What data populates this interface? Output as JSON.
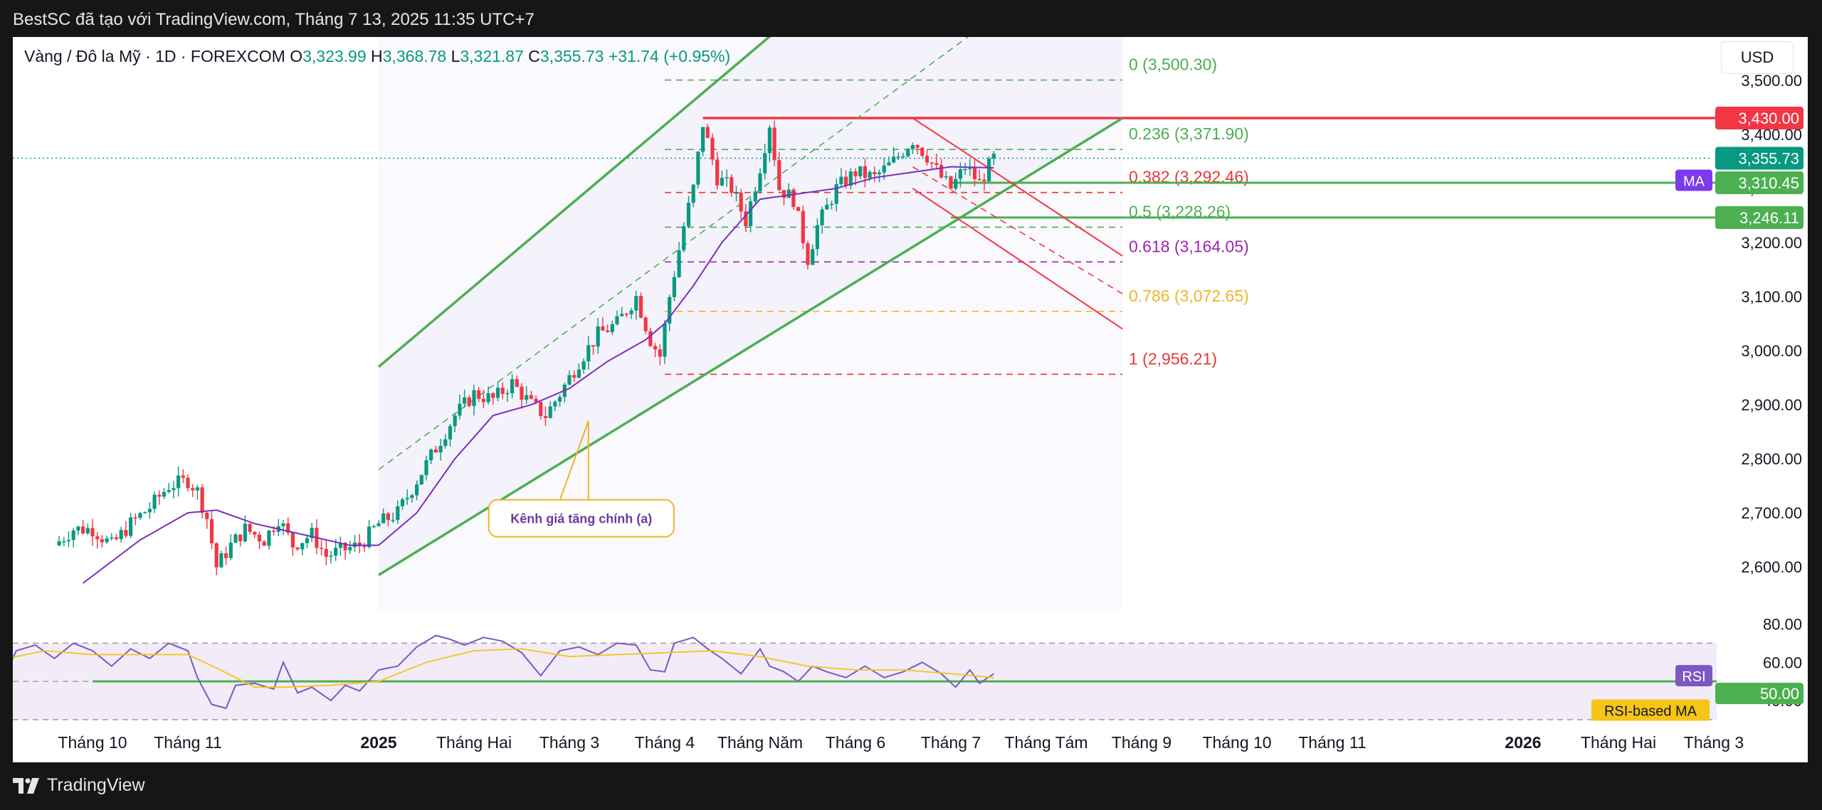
{
  "header": {
    "caption": "BestSC đã tạo với TradingView.com, Tháng 7 13, 2025 11:35 UTC+7"
  },
  "legend": {
    "symbol": "Vàng / Đô la Mỹ · 1D · FOREXCOM",
    "o_label": "O",
    "open": "3,323.99",
    "h_label": "H",
    "high": "3,368.78",
    "l_label": "L",
    "low": "3,321.87",
    "c_label": "C",
    "close": "3,355.73",
    "change": "+31.74 (+0.95%)"
  },
  "price_scale": {
    "currency": "USD"
  },
  "footer": {
    "brand": "TradingView"
  },
  "colors": {
    "up": "#089981",
    "down": "#f23645",
    "ma": "#7b2fbe",
    "channel": "#4caf50",
    "resistance": "#f23645",
    "rsi": "#7e57c2",
    "rsi_ma": "#f5c518",
    "annotation": "#f0b429"
  },
  "chart_data": [
    {
      "type": "candlestick",
      "title": "Vàng / Đô la Mỹ · 1D · FOREXCOM",
      "ylim": [
        2520,
        3580
      ],
      "y_ticks": [
        {
          "value": 2600,
          "label": "2,600.00"
        },
        {
          "value": 2700,
          "label": "2,700.00"
        },
        {
          "value": 2800,
          "label": "2,800.00"
        },
        {
          "value": 2900,
          "label": "2,900.00"
        },
        {
          "value": 3000,
          "label": "3,000.00"
        },
        {
          "value": 3100,
          "label": "3,100.00"
        },
        {
          "value": 3200,
          "label": "3,200.00"
        },
        {
          "value": 3300,
          "label": "3,300.00"
        },
        {
          "value": 3400,
          "label": "3,400.00"
        },
        {
          "value": 3500,
          "label": "3,500.00"
        }
      ],
      "x_ticks": [
        {
          "month": 0,
          "label": "Tháng 10",
          "bold": false
        },
        {
          "month": 1,
          "label": "Tháng 11",
          "bold": false
        },
        {
          "month": 3,
          "label": "2025",
          "bold": true
        },
        {
          "month": 4,
          "label": "Tháng Hai",
          "bold": false
        },
        {
          "month": 5,
          "label": "Tháng 3",
          "bold": false
        },
        {
          "month": 6,
          "label": "Tháng 4",
          "bold": false
        },
        {
          "month": 7,
          "label": "Tháng Năm",
          "bold": false
        },
        {
          "month": 8,
          "label": "Tháng 6",
          "bold": false
        },
        {
          "month": 9,
          "label": "Tháng 7",
          "bold": false
        },
        {
          "month": 10,
          "label": "Tháng Tám",
          "bold": false
        },
        {
          "month": 11,
          "label": "Tháng 9",
          "bold": false
        },
        {
          "month": 12,
          "label": "Tháng 10",
          "bold": false
        },
        {
          "month": 13,
          "label": "Tháng 11",
          "bold": false
        },
        {
          "month": 15,
          "label": "2026",
          "bold": true
        },
        {
          "month": 16,
          "label": "Tháng Hai",
          "bold": false
        },
        {
          "month": 17,
          "label": "Tháng 3",
          "bold": false
        }
      ],
      "close_path": [
        [
          -0.4,
          2640
        ],
        [
          -0.2,
          2670
        ],
        [
          0.0,
          2670
        ],
        [
          0.2,
          2640
        ],
        [
          0.4,
          2680
        ],
        [
          0.6,
          2710
        ],
        [
          0.8,
          2750
        ],
        [
          1.0,
          2760
        ],
        [
          1.1,
          2740
        ],
        [
          1.2,
          2690
        ],
        [
          1.3,
          2600
        ],
        [
          1.45,
          2640
        ],
        [
          1.6,
          2670
        ],
        [
          1.8,
          2650
        ],
        [
          1.95,
          2690
        ],
        [
          2.1,
          2640
        ],
        [
          2.3,
          2660
        ],
        [
          2.45,
          2620
        ],
        [
          2.6,
          2630
        ],
        [
          2.8,
          2640
        ],
        [
          3.0,
          2680
        ],
        [
          3.2,
          2700
        ],
        [
          3.4,
          2760
        ],
        [
          3.6,
          2820
        ],
        [
          3.8,
          2880
        ],
        [
          4.0,
          2920
        ],
        [
          4.2,
          2910
        ],
        [
          4.4,
          2940
        ],
        [
          4.6,
          2900
        ],
        [
          4.75,
          2880
        ],
        [
          4.9,
          2920
        ],
        [
          5.1,
          2980
        ],
        [
          5.3,
          3030
        ],
        [
          5.5,
          3050
        ],
        [
          5.7,
          3100
        ],
        [
          5.85,
          3020
        ],
        [
          5.95,
          2990
        ],
        [
          6.05,
          3100
        ],
        [
          6.2,
          3230
        ],
        [
          6.3,
          3300
        ],
        [
          6.4,
          3420
        ],
        [
          6.55,
          3320
        ],
        [
          6.7,
          3300
        ],
        [
          6.85,
          3240
        ],
        [
          7.0,
          3340
        ],
        [
          7.1,
          3420
        ],
        [
          7.2,
          3300
        ],
        [
          7.35,
          3280
        ],
        [
          7.5,
          3170
        ],
        [
          7.6,
          3230
        ],
        [
          7.8,
          3300
        ],
        [
          8.0,
          3330
        ],
        [
          8.2,
          3320
        ],
        [
          8.4,
          3350
        ],
        [
          8.6,
          3390
        ],
        [
          8.75,
          3360
        ],
        [
          8.9,
          3320
        ],
        [
          9.0,
          3300
        ],
        [
          9.15,
          3340
        ],
        [
          9.3,
          3310
        ],
        [
          9.45,
          3355.73
        ]
      ],
      "series": [
        {
          "name": "MA",
          "path": [
            [
              -0.1,
              2570
            ],
            [
              0.5,
              2650
            ],
            [
              1.0,
              2700
            ],
            [
              1.3,
              2705
            ],
            [
              1.7,
              2680
            ],
            [
              2.2,
              2660
            ],
            [
              2.7,
              2640
            ],
            [
              3.0,
              2640
            ],
            [
              3.4,
              2700
            ],
            [
              3.8,
              2800
            ],
            [
              4.2,
              2880
            ],
            [
              4.6,
              2900
            ],
            [
              5.0,
              2930
            ],
            [
              5.4,
              2980
            ],
            [
              5.8,
              3020
            ],
            [
              6.0,
              3050
            ],
            [
              6.3,
              3120
            ],
            [
              6.6,
              3200
            ],
            [
              7.0,
              3280
            ],
            [
              7.4,
              3290
            ],
            [
              7.8,
              3300
            ],
            [
              8.2,
              3320
            ],
            [
              8.6,
              3330
            ],
            [
              9.0,
              3340
            ],
            [
              9.45,
              3338
            ]
          ]
        }
      ],
      "lines": [
        {
          "name": "channel-upper",
          "kind": "solid",
          "from": [
            3.0,
            2970
          ],
          "to": [
            8.1,
            3730
          ]
        },
        {
          "name": "channel-mid",
          "kind": "dashed",
          "from": [
            3.0,
            2780
          ],
          "to": [
            10.8,
            3790
          ]
        },
        {
          "name": "channel-lower",
          "kind": "solid",
          "from": [
            3.0,
            2585
          ],
          "to": [
            10.8,
            3430
          ]
        },
        {
          "name": "downtrend-upper",
          "kind": "solid",
          "from": [
            8.6,
            3430
          ],
          "to": [
            10.8,
            3175
          ]
        },
        {
          "name": "downtrend-mid",
          "kind": "dashed",
          "from": [
            8.6,
            3340
          ],
          "to": [
            10.8,
            3105
          ]
        },
        {
          "name": "downtrend-lower",
          "kind": "solid",
          "from": [
            8.6,
            3300
          ],
          "to": [
            10.8,
            3040
          ]
        }
      ],
      "channel_band": {
        "x_from": 3.0,
        "x_to": 10.8
      },
      "fib_levels": [
        {
          "ratio": "0",
          "value": 3500.3,
          "label": "0 (3,500.30)",
          "color": "#4caf50"
        },
        {
          "ratio": "0.236",
          "value": 3371.9,
          "label": "0.236 (3,371.90)",
          "color": "#4caf50"
        },
        {
          "ratio": "0.382",
          "value": 3292.46,
          "label": "0.382 (3,292.46)",
          "color": "#e53935"
        },
        {
          "ratio": "0.5",
          "value": 3228.26,
          "label": "0.5 (3,228.26)",
          "color": "#4caf50"
        },
        {
          "ratio": "0.618",
          "value": 3164.05,
          "label": "0.618 (3,164.05)",
          "color": "#9c27b0"
        },
        {
          "ratio": "0.786",
          "value": 3072.65,
          "label": "0.786 (3,072.65)",
          "color": "#f0b429"
        },
        {
          "ratio": "1",
          "value": 2956.21,
          "label": "1 (2,956.21)",
          "color": "#e53935"
        }
      ],
      "fib_x": [
        6.0,
        10.8
      ],
      "resistance_line": {
        "value": 3430.0,
        "x_from": 6.4
      },
      "support_lines": [
        3310.45,
        3246.11
      ],
      "last_price": 3355.73,
      "price_badges": [
        {
          "value": 3430.0,
          "label": "3,430.00",
          "color": "#f23645"
        },
        {
          "value": 3355.73,
          "label": "3,355.73",
          "color": "#089981"
        },
        {
          "value": 3310.45,
          "label": "3,310.45",
          "color": "#4caf50"
        },
        {
          "value": 3246.11,
          "label": "3,246.11",
          "color": "#4caf50"
        }
      ],
      "ma_tag": {
        "label": "MA",
        "value": 3315
      },
      "annotation": {
        "text": "Kênh giá tăng chính (a)",
        "anchor": [
          5.2,
          2870
        ],
        "box_center": [
          5.2,
          2690
        ]
      }
    },
    {
      "type": "line",
      "title": "RSI",
      "ylim": [
        30,
        85
      ],
      "y_ticks": [
        {
          "value": 80,
          "label": "80.00"
        },
        {
          "value": 60,
          "label": "60.00"
        },
        {
          "value": 40,
          "label": "40.00"
        }
      ],
      "bands": {
        "upper": 70,
        "middle": 50,
        "lower": 30
      },
      "level_line": 50,
      "badges": [
        {
          "label": "RSI",
          "color": "#7e57c2"
        },
        {
          "label": "50.00",
          "value": 50,
          "color": "#4caf50"
        },
        {
          "label": "RSI-based MA",
          "color": "#f5c518"
        }
      ],
      "series": [
        {
          "name": "RSI",
          "path": [
            [
              -0.9,
              55
            ],
            [
              -0.8,
              66
            ],
            [
              -0.6,
              69
            ],
            [
              -0.4,
              62
            ],
            [
              -0.2,
              70
            ],
            [
              0.0,
              66
            ],
            [
              0.2,
              58
            ],
            [
              0.4,
              67
            ],
            [
              0.6,
              62
            ],
            [
              0.8,
              70
            ],
            [
              1.0,
              66
            ],
            [
              1.1,
              52
            ],
            [
              1.25,
              38
            ],
            [
              1.4,
              36
            ],
            [
              1.5,
              48
            ],
            [
              1.7,
              49
            ],
            [
              1.9,
              46
            ],
            [
              2.0,
              60
            ],
            [
              2.15,
              44
            ],
            [
              2.3,
              47
            ],
            [
              2.5,
              40
            ],
            [
              2.65,
              48
            ],
            [
              2.8,
              45
            ],
            [
              3.0,
              56
            ],
            [
              3.2,
              58
            ],
            [
              3.4,
              68
            ],
            [
              3.6,
              74
            ],
            [
              3.75,
              72
            ],
            [
              3.9,
              69
            ],
            [
              4.1,
              73
            ],
            [
              4.3,
              71
            ],
            [
              4.5,
              65
            ],
            [
              4.7,
              53
            ],
            [
              4.9,
              66
            ],
            [
              5.1,
              68
            ],
            [
              5.3,
              64
            ],
            [
              5.5,
              70
            ],
            [
              5.7,
              69
            ],
            [
              5.85,
              56
            ],
            [
              6.0,
              55
            ],
            [
              6.1,
              70
            ],
            [
              6.3,
              73
            ],
            [
              6.45,
              67
            ],
            [
              6.6,
              62
            ],
            [
              6.8,
              54
            ],
            [
              7.0,
              67
            ],
            [
              7.1,
              58
            ],
            [
              7.25,
              55
            ],
            [
              7.4,
              50
            ],
            [
              7.55,
              58
            ],
            [
              7.7,
              55
            ],
            [
              7.9,
              52
            ],
            [
              8.1,
              58
            ],
            [
              8.3,
              52
            ],
            [
              8.5,
              55
            ],
            [
              8.7,
              60
            ],
            [
              8.9,
              54
            ],
            [
              9.05,
              47
            ],
            [
              9.2,
              56
            ],
            [
              9.3,
              49
            ],
            [
              9.45,
              54
            ]
          ]
        },
        {
          "name": "RSI-based MA",
          "path": [
            [
              -0.9,
              62
            ],
            [
              -0.5,
              66
            ],
            [
              0.0,
              64
            ],
            [
              0.5,
              64
            ],
            [
              1.0,
              64
            ],
            [
              1.3,
              57
            ],
            [
              1.7,
              47
            ],
            [
              2.0,
              47
            ],
            [
              2.5,
              48
            ],
            [
              3.0,
              50
            ],
            [
              3.5,
              60
            ],
            [
              4.0,
              66
            ],
            [
              4.5,
              67
            ],
            [
              5.0,
              63
            ],
            [
              5.5,
              64
            ],
            [
              6.0,
              65
            ],
            [
              6.5,
              66
            ],
            [
              7.0,
              63
            ],
            [
              7.5,
              58
            ],
            [
              8.0,
              56
            ],
            [
              8.5,
              56
            ],
            [
              9.0,
              54
            ],
            [
              9.45,
              52
            ]
          ]
        }
      ]
    }
  ]
}
